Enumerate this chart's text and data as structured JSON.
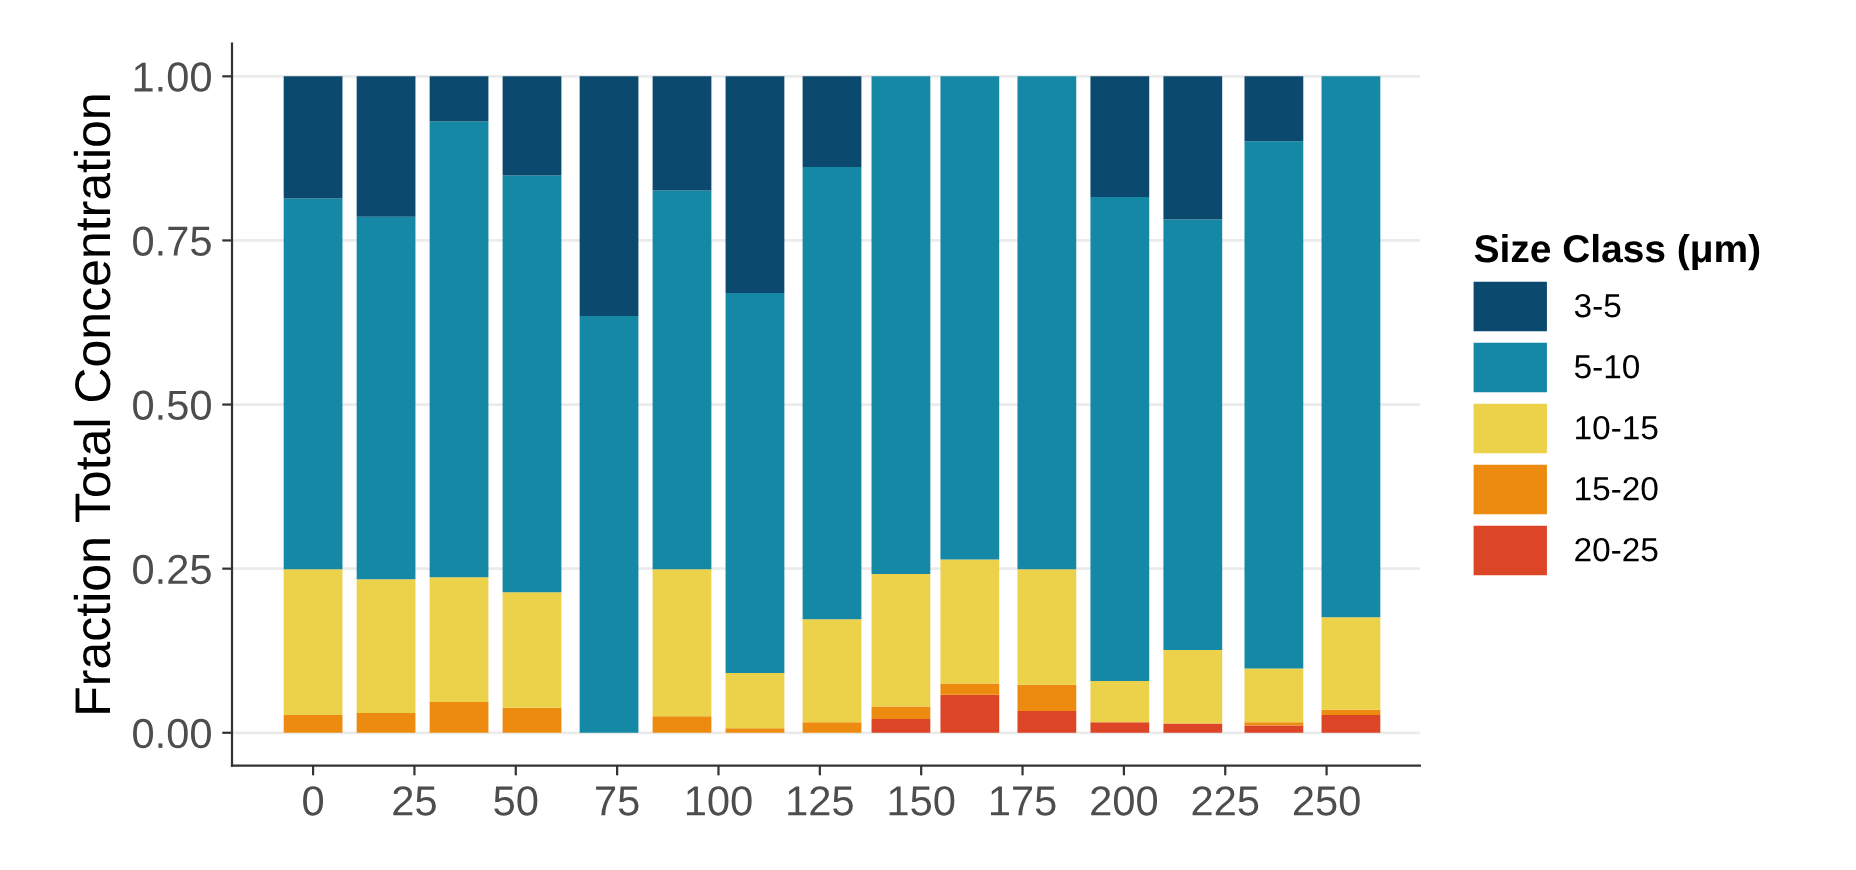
{
  "chart_data": {
    "type": "bar",
    "stacked": true,
    "ylabel": "Fraction Total Concentration",
    "legend_title": "Size Class (μm)",
    "x": [
      0,
      18,
      36,
      54,
      73,
      91,
      109,
      128,
      145,
      162,
      181,
      199,
      217,
      237,
      256
    ],
    "series": [
      {
        "name": "20-25",
        "color": "#dd4527",
        "values": [
          0,
          0,
          0,
          0,
          0,
          0,
          0,
          0,
          0.021,
          0.058,
          0.033,
          0.016,
          0.014,
          0.011,
          0.027
        ]
      },
      {
        "name": "15-20",
        "color": "#ec8b0f",
        "values": [
          0.027,
          0.03,
          0.047,
          0.038,
          0,
          0.025,
          0.007,
          0.016,
          0.019,
          0.017,
          0.04,
          0,
          0,
          0.005,
          0.008
        ]
      },
      {
        "name": "10-15",
        "color": "#ecd14a",
        "values": [
          0.222,
          0.204,
          0.19,
          0.176,
          0,
          0.224,
          0.084,
          0.157,
          0.202,
          0.189,
          0.176,
          0.063,
          0.112,
          0.082,
          0.141
        ]
      },
      {
        "name": "5-10",
        "color": "#1588a5",
        "values": [
          0.565,
          0.552,
          0.694,
          0.635,
          0.635,
          0.577,
          0.579,
          0.689,
          0.758,
          0.736,
          0.751,
          0.737,
          0.656,
          0.803,
          0.824
        ]
      },
      {
        "name": "3-5",
        "color": "#0b4a6e",
        "values": [
          0.186,
          0.214,
          0.069,
          0.151,
          0.365,
          0.174,
          0.33,
          0.138,
          0,
          0,
          0,
          0.184,
          0.218,
          0.099,
          0
        ]
      }
    ],
    "xlim": [
      -20,
      273
    ],
    "xticks": [
      0,
      25,
      50,
      75,
      100,
      125,
      150,
      175,
      200,
      225,
      250
    ],
    "ylim": [
      -0.05,
      1.05
    ],
    "yticks": [
      {
        "value": 0,
        "label": "0.00"
      },
      {
        "value": 0.25,
        "label": "0.25"
      },
      {
        "value": 0.5,
        "label": "0.50"
      },
      {
        "value": 0.75,
        "label": "0.75"
      },
      {
        "value": 1,
        "label": "1.00"
      }
    ],
    "grid": "y",
    "legend": "right"
  }
}
